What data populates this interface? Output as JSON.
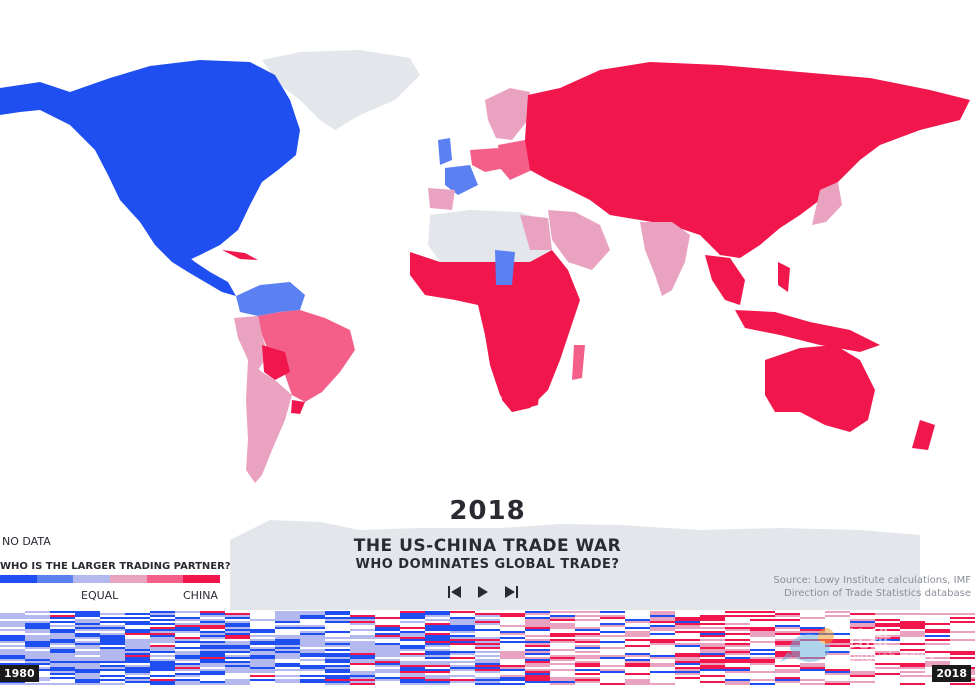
{
  "header": {
    "year": "2018",
    "title": "THE US-CHINA TRADE WAR",
    "subtitle": "WHO DOMINATES GLOBAL TRADE?"
  },
  "legend": {
    "no_data_label": "NO DATA",
    "question": "WHO IS THE LARGER TRADING PARTNER?",
    "equal_label": "EQUAL",
    "china_label": "CHINA",
    "no_data_color": "#e3e6ea",
    "colors": [
      "#1f4ff0",
      "#5a80f2",
      "#b3b8ee",
      "#e9a3c1",
      "#f45f8a",
      "#f1164c"
    ]
  },
  "source": {
    "line1": "Source: Lowy Institute calculations, IMF",
    "line2": "Direction of Trade Statistics database"
  },
  "timeline": {
    "start_year": "1980",
    "end_year": "2018"
  },
  "controls": {
    "first_icon": "skip-to-start-icon",
    "play_icon": "play-icon",
    "last_icon": "skip-to-end-icon"
  },
  "watermark": {
    "text_cn": "比推",
    "text_en": "bitpush.news"
  }
}
